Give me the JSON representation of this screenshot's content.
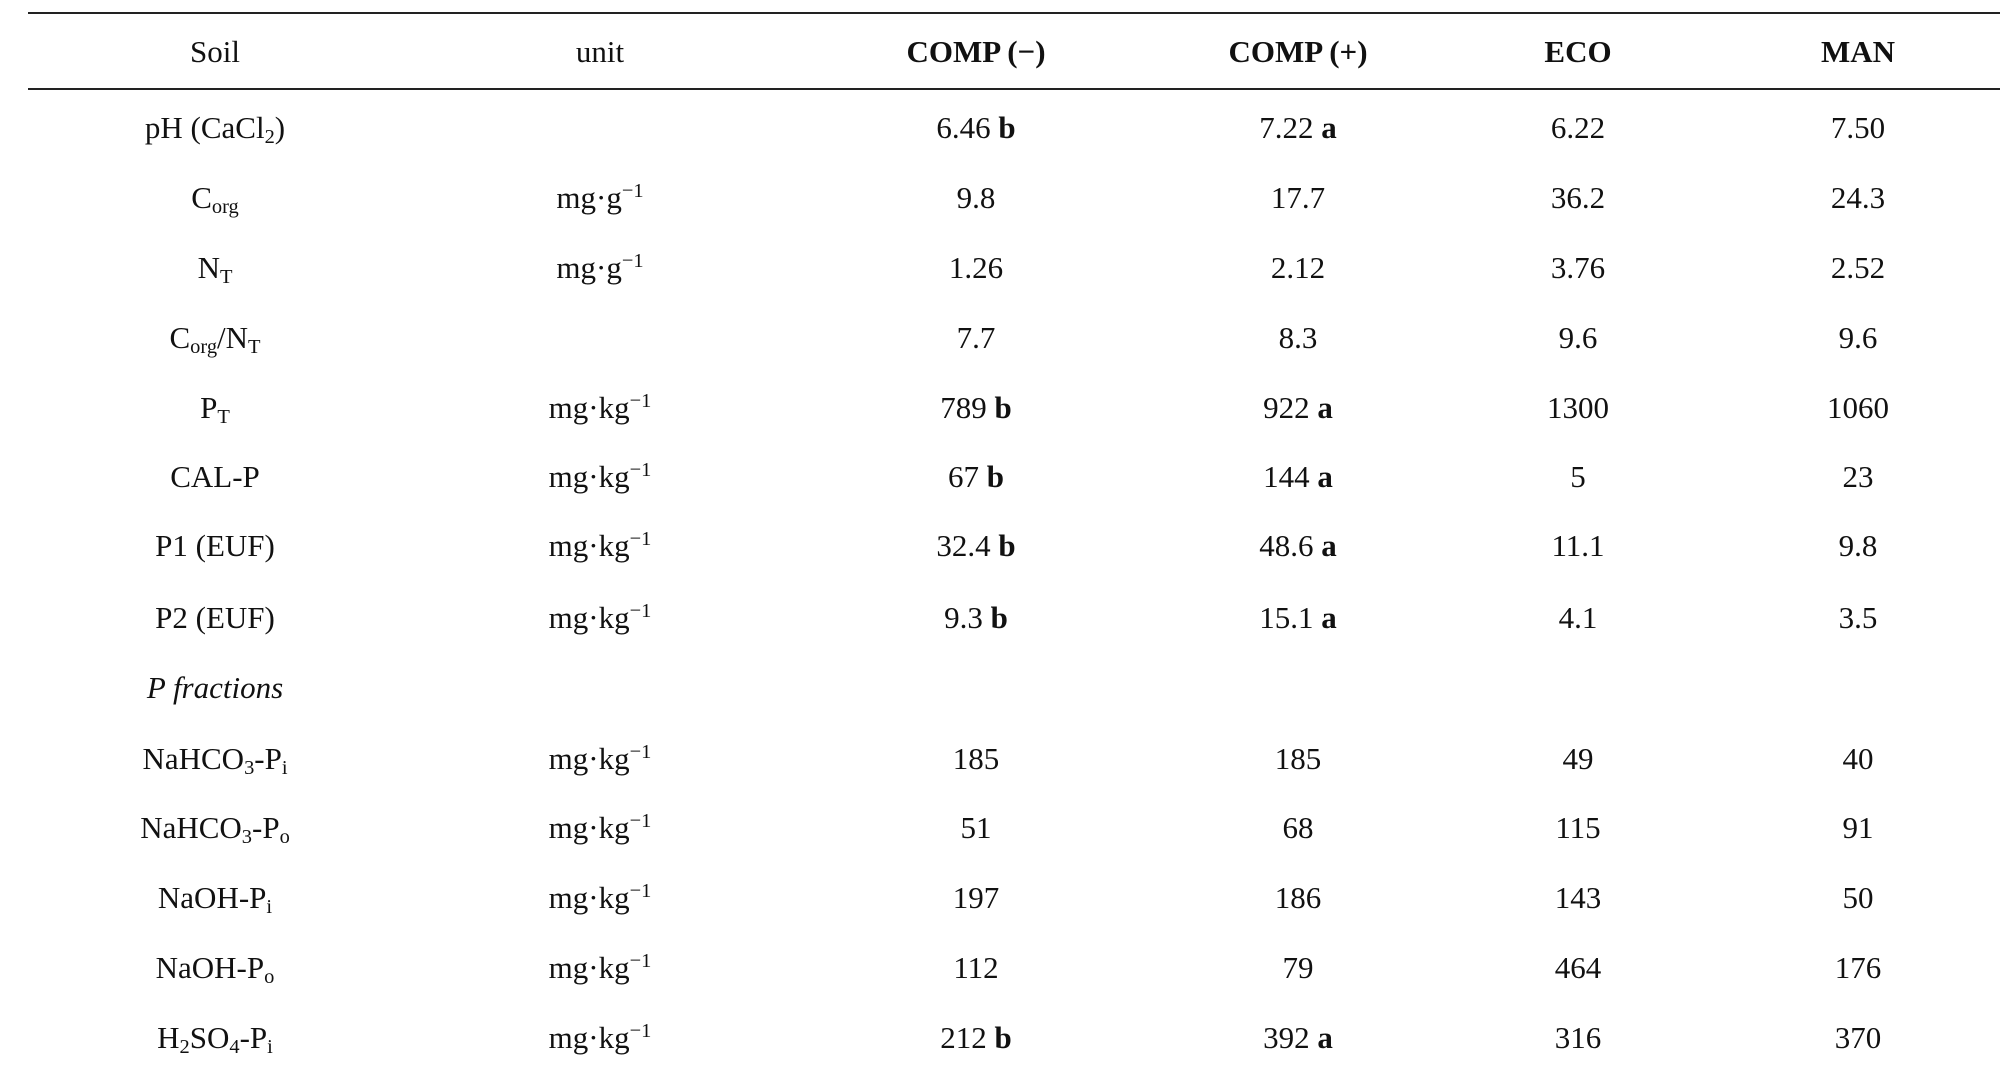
{
  "table": {
    "headers": {
      "soil": "Soil",
      "unit": "unit",
      "comp_minus": "COMP (−)",
      "comp_plus": "COMP (+)",
      "eco": "ECO",
      "man": "MAN"
    },
    "rows": [
      {
        "label": "pH (CaCl",
        "label_sub": "2",
        "label_after": ")",
        "unit_main": "",
        "unit_exp": "",
        "comp_minus": "6.46",
        "comp_minus_letter": "b",
        "comp_plus": "7.22",
        "comp_plus_letter": "a",
        "eco": "6.22",
        "man": "7.50"
      },
      {
        "label": "C",
        "label_sub": "org",
        "label_after": "",
        "unit_main": "mg·g",
        "unit_exp": "−1",
        "comp_minus": "9.8",
        "comp_minus_letter": "",
        "comp_plus": "17.7",
        "comp_plus_letter": "",
        "eco": "36.2",
        "man": "24.3"
      },
      {
        "label": "N",
        "label_sub": "T",
        "label_after": "",
        "unit_main": "mg·g",
        "unit_exp": "−1",
        "comp_minus": "1.26",
        "comp_minus_letter": "",
        "comp_plus": "2.12",
        "comp_plus_letter": "",
        "eco": "3.76",
        "man": "2.52"
      },
      {
        "label": "C",
        "label_sub": "org",
        "label_after": "/N",
        "label_sub2": "T",
        "unit_main": "",
        "unit_exp": "",
        "comp_minus": "7.7",
        "comp_minus_letter": "",
        "comp_plus": "8.3",
        "comp_plus_letter": "",
        "eco": "9.6",
        "man": "9.6"
      },
      {
        "label": "P",
        "label_sub": "T",
        "label_after": "",
        "unit_main": "mg·kg",
        "unit_exp": "−1",
        "comp_minus": "789",
        "comp_minus_letter": "b",
        "comp_plus": "922",
        "comp_plus_letter": "a",
        "eco": "1300",
        "man": "1060"
      },
      {
        "label": "CAL-P",
        "label_sub": "",
        "label_after": "",
        "unit_main": "mg·kg",
        "unit_exp": "−1",
        "comp_minus": "67",
        "comp_minus_letter": "b",
        "comp_plus": "144",
        "comp_plus_letter": "a",
        "eco": "5",
        "man": "23"
      },
      {
        "label": "P1 (EUF)",
        "label_sub": "",
        "label_after": "",
        "unit_main": "mg·kg",
        "unit_exp": "−1",
        "comp_minus": "32.4",
        "comp_minus_letter": "b",
        "comp_plus": "48.6",
        "comp_plus_letter": "a",
        "eco": "11.1",
        "man": "9.8"
      },
      {
        "label": "P2 (EUF)",
        "label_sub": "",
        "label_after": "",
        "unit_main": "mg·kg",
        "unit_exp": "−1",
        "comp_minus": "9.3",
        "comp_minus_letter": "b",
        "comp_plus": "15.1",
        "comp_plus_letter": "a",
        "eco": "4.1",
        "man": "3.5"
      },
      {
        "section": "P fractions"
      },
      {
        "label": "NaHCO",
        "label_sub": "3",
        "label_after": "-P",
        "label_sub2": "i",
        "unit_main": "mg·kg",
        "unit_exp": "−1",
        "comp_minus": "185",
        "comp_minus_letter": "",
        "comp_plus": "185",
        "comp_plus_letter": "",
        "eco": "49",
        "man": "40"
      },
      {
        "label": "NaHCO",
        "label_sub": "3",
        "label_after": "-P",
        "label_sub2": "o",
        "unit_main": "mg·kg",
        "unit_exp": "−1",
        "comp_minus": "51",
        "comp_minus_letter": "",
        "comp_plus": "68",
        "comp_plus_letter": "",
        "eco": "115",
        "man": "91"
      },
      {
        "label": "NaOH-P",
        "label_sub": "i",
        "label_after": "",
        "unit_main": "mg·kg",
        "unit_exp": "−1",
        "comp_minus": "197",
        "comp_minus_letter": "",
        "comp_plus": "186",
        "comp_plus_letter": "",
        "eco": "143",
        "man": "50"
      },
      {
        "label": "NaOH-P",
        "label_sub": "o",
        "label_after": "",
        "unit_main": "mg·kg",
        "unit_exp": "−1",
        "comp_minus": "112",
        "comp_minus_letter": "",
        "comp_plus": "79",
        "comp_plus_letter": "",
        "eco": "464",
        "man": "176"
      },
      {
        "label": "H",
        "label_sub": "2",
        "label_after": "SO",
        "label_sub2": "4",
        "label_after2": "-P",
        "label_sub3": "i",
        "unit_main": "mg·kg",
        "unit_exp": "−1",
        "comp_minus": "212",
        "comp_minus_letter": "b",
        "comp_plus": "392",
        "comp_plus_letter": "a",
        "eco": "316",
        "man": "370"
      }
    ]
  }
}
